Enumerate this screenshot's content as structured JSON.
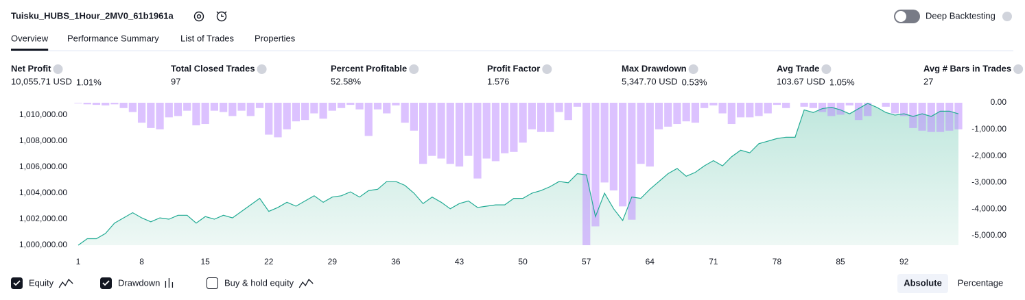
{
  "header": {
    "title": "Tuisku_HUBS_1Hour_2MV0_61b1961a",
    "toggle_label": "Deep Backtesting",
    "toggle_on": false
  },
  "tabs": [
    {
      "label": "Overview",
      "active": true
    },
    {
      "label": "Performance Summary",
      "active": false
    },
    {
      "label": "List of Trades",
      "active": false
    },
    {
      "label": "Properties",
      "active": false
    }
  ],
  "stats": [
    {
      "label": "Net Profit",
      "value": "10,055.71 USD",
      "pct": "1.01%",
      "color": "#089981"
    },
    {
      "label": "Total Closed Trades",
      "value": "97",
      "color": "#131722"
    },
    {
      "label": "Percent Profitable",
      "value": "52.58%",
      "color": "#089981"
    },
    {
      "label": "Profit Factor",
      "value": "1.576",
      "color": "#089981"
    },
    {
      "label": "Max Drawdown",
      "value": "5,347.70 USD",
      "pct": "0.53%",
      "color": "#f23645"
    },
    {
      "label": "Avg Trade",
      "value": "103.67 USD",
      "pct": "1.05%",
      "color": "#089981"
    },
    {
      "label": "Avg # Bars in Trades",
      "value": "27",
      "color": "#131722"
    }
  ],
  "chart_data": {
    "type": "line",
    "x": [
      1,
      2,
      3,
      4,
      5,
      6,
      7,
      8,
      9,
      10,
      11,
      12,
      13,
      14,
      15,
      16,
      17,
      18,
      19,
      20,
      21,
      22,
      23,
      24,
      25,
      26,
      27,
      28,
      29,
      30,
      31,
      32,
      33,
      34,
      35,
      36,
      37,
      38,
      39,
      40,
      41,
      42,
      43,
      44,
      45,
      46,
      47,
      48,
      49,
      50,
      51,
      52,
      53,
      54,
      55,
      56,
      57,
      58,
      59,
      60,
      61,
      62,
      63,
      64,
      65,
      66,
      67,
      68,
      69,
      70,
      71,
      72,
      73,
      74,
      75,
      76,
      77,
      78,
      79,
      80,
      81,
      82,
      83,
      84,
      85,
      86,
      87,
      88,
      89,
      90,
      91,
      92,
      93,
      94,
      95,
      96,
      97,
      98
    ],
    "xlim": [
      1,
      98
    ],
    "xticks": [
      1,
      8,
      15,
      22,
      29,
      36,
      43,
      50,
      57,
      64,
      71,
      78,
      85,
      92
    ],
    "ylim": [
      1000000,
      1010950
    ],
    "yticks": [
      {
        "value": 1000000,
        "label": "1,000,000.00"
      },
      {
        "value": 1002000,
        "label": "1,002,000.00"
      },
      {
        "value": 1004000,
        "label": "1,004,000.00"
      },
      {
        "value": 1006000,
        "label": "1,006,000.00"
      },
      {
        "value": 1008000,
        "label": "1,008,000.00"
      },
      {
        "value": 1010000,
        "label": "1,010,000.00"
      }
    ],
    "y2lim": [
      -5360,
      0
    ],
    "y2ticks": [
      {
        "value": 0,
        "label": "0.00"
      },
      {
        "value": -1000,
        "label": "-1,000.00"
      },
      {
        "value": -2000,
        "label": "-2,000.00"
      },
      {
        "value": -3000,
        "label": "-3,000.00"
      },
      {
        "value": -4000,
        "label": "-4,000.00"
      },
      {
        "value": -5000,
        "label": "-5,000.00"
      }
    ],
    "series": [
      {
        "name": "Equity",
        "color": "#22ab94",
        "checked": true,
        "values": [
          1000000,
          1000500,
          1000500,
          1000900,
          1001700,
          1002100,
          1002500,
          1002100,
          1001800,
          1002100,
          1002000,
          1002300,
          1002300,
          1001700,
          1002200,
          1002000,
          1002300,
          1002100,
          1002600,
          1003100,
          1003600,
          1002600,
          1002900,
          1003300,
          1003000,
          1003400,
          1003800,
          1003300,
          1003700,
          1003800,
          1004100,
          1003700,
          1004200,
          1004300,
          1004900,
          1004900,
          1004600,
          1004000,
          1003200,
          1003700,
          1003300,
          1002800,
          1003200,
          1003400,
          1002900,
          1003000,
          1003100,
          1003100,
          1003600,
          1003600,
          1004000,
          1004200,
          1004500,
          1004900,
          1004800,
          1005500,
          1005400,
          1002200,
          1004000,
          1002800,
          1001900,
          1003700,
          1003600,
          1004300,
          1004900,
          1005500,
          1005900,
          1005300,
          1005600,
          1006100,
          1006500,
          1006100,
          1006800,
          1007300,
          1007100,
          1007800,
          1008000,
          1008200,
          1008300,
          1008300,
          1010400,
          1010200,
          1010500,
          1010600,
          1010400,
          1010100,
          1010500,
          1010900,
          1010600,
          1010200,
          1010000,
          1010100,
          1009900,
          1010100,
          1009900,
          1010300,
          1010300,
          1010100
        ]
      },
      {
        "name": "Drawdown",
        "color": "rgba(186,133,255,0.5)",
        "checked": true,
        "axis": "y2",
        "values": [
          -20,
          -60,
          -80,
          -100,
          -60,
          -200,
          -350,
          -750,
          -950,
          -1000,
          -550,
          -500,
          -300,
          -850,
          -800,
          -300,
          -350,
          -500,
          -300,
          -500,
          -200,
          -1200,
          -1300,
          -1000,
          -700,
          -650,
          -400,
          -600,
          -300,
          -200,
          -80,
          -250,
          -1250,
          -250,
          -400,
          -100,
          -750,
          -1050,
          -2300,
          -2000,
          -2100,
          -2300,
          -2400,
          -2000,
          -2850,
          -2100,
          -2200,
          -1900,
          -1850,
          -1500,
          -1000,
          -1100,
          -1100,
          -350,
          -650,
          -150,
          -5360,
          -4650,
          -3000,
          -3300,
          -3900,
          -4400,
          -2300,
          -2400,
          -1000,
          -900,
          -800,
          -700,
          -750,
          -200,
          -100,
          -400,
          -800,
          -550,
          -550,
          -500,
          -400,
          -80,
          -200,
          0,
          -150,
          -200,
          -350,
          -500,
          -450,
          -100,
          -650,
          -500,
          0,
          -150,
          -400,
          -500,
          -950,
          -1050,
          -1100,
          -1100,
          -1050,
          -1000
        ]
      }
    ],
    "extra_legend": {
      "name": "Buy & hold equity",
      "checked": false
    },
    "modes": [
      {
        "label": "Absolute",
        "active": true
      },
      {
        "label": "Percentage",
        "active": false
      }
    ]
  }
}
